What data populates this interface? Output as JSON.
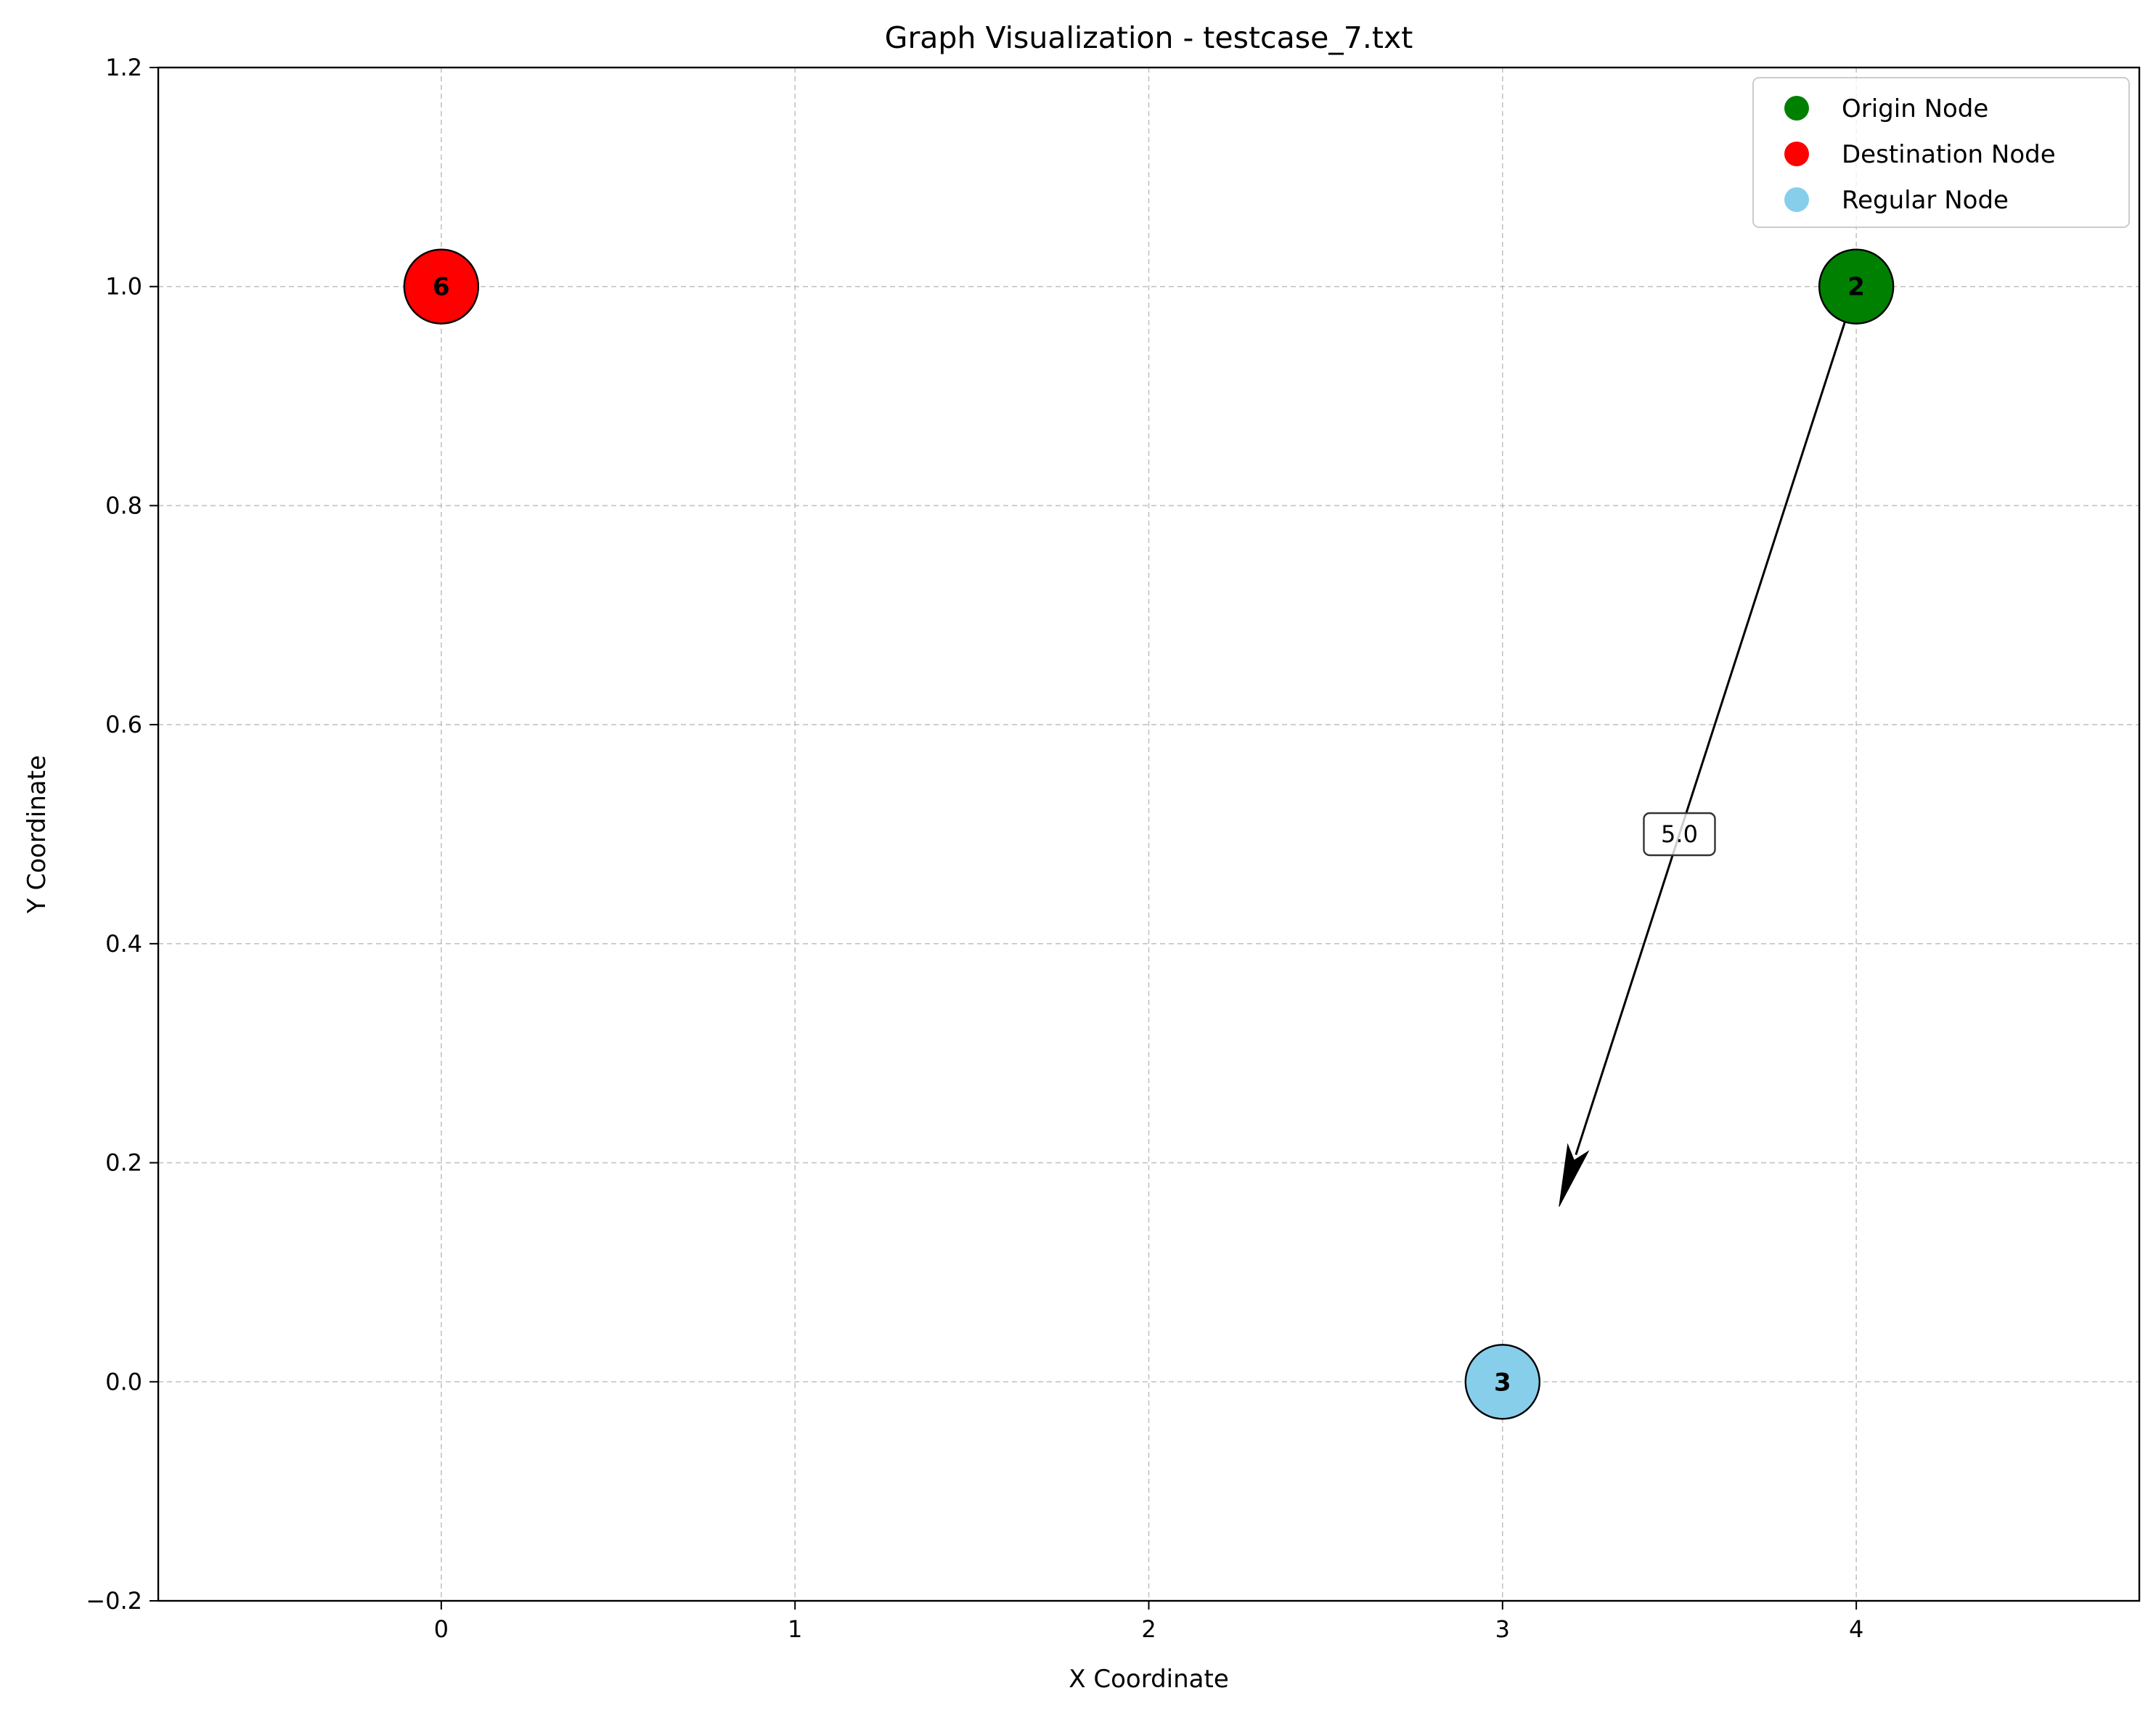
{
  "chart_data": {
    "type": "scatter",
    "title": "Graph Visualization - testcase_7.txt",
    "xlabel": "X Coordinate",
    "ylabel": "Y Coordinate",
    "xlim": [
      -0.8,
      4.8
    ],
    "ylim": [
      -0.2,
      1.2
    ],
    "xticks": [
      0,
      1,
      2,
      3,
      4
    ],
    "xtick_labels": [
      "0",
      "1",
      "2",
      "3",
      "4"
    ],
    "yticks": [
      -0.2,
      0.0,
      0.2,
      0.4,
      0.6,
      0.8,
      1.0,
      1.2
    ],
    "ytick_labels": [
      "−0.2",
      "0.0",
      "0.2",
      "0.4",
      "0.6",
      "0.8",
      "1.0",
      "1.2"
    ],
    "grid": true,
    "legend_position": "top-right",
    "legend": [
      {
        "label": "Origin Node",
        "color": "#008000"
      },
      {
        "label": "Destination Node",
        "color": "#ff0000"
      },
      {
        "label": "Regular Node",
        "color": "#87ceeb"
      }
    ],
    "nodes": [
      {
        "id": "6",
        "x": 0,
        "y": 1.0,
        "role": "destination",
        "color": "#ff0000"
      },
      {
        "id": "2",
        "x": 4,
        "y": 1.0,
        "role": "origin",
        "color": "#008000"
      },
      {
        "id": "3",
        "x": 3,
        "y": 0.0,
        "role": "regular",
        "color": "#87ceeb"
      }
    ],
    "edges": [
      {
        "from": "2",
        "to": "3",
        "label": "5.0",
        "arrow": true,
        "color": "#000000"
      }
    ]
  }
}
